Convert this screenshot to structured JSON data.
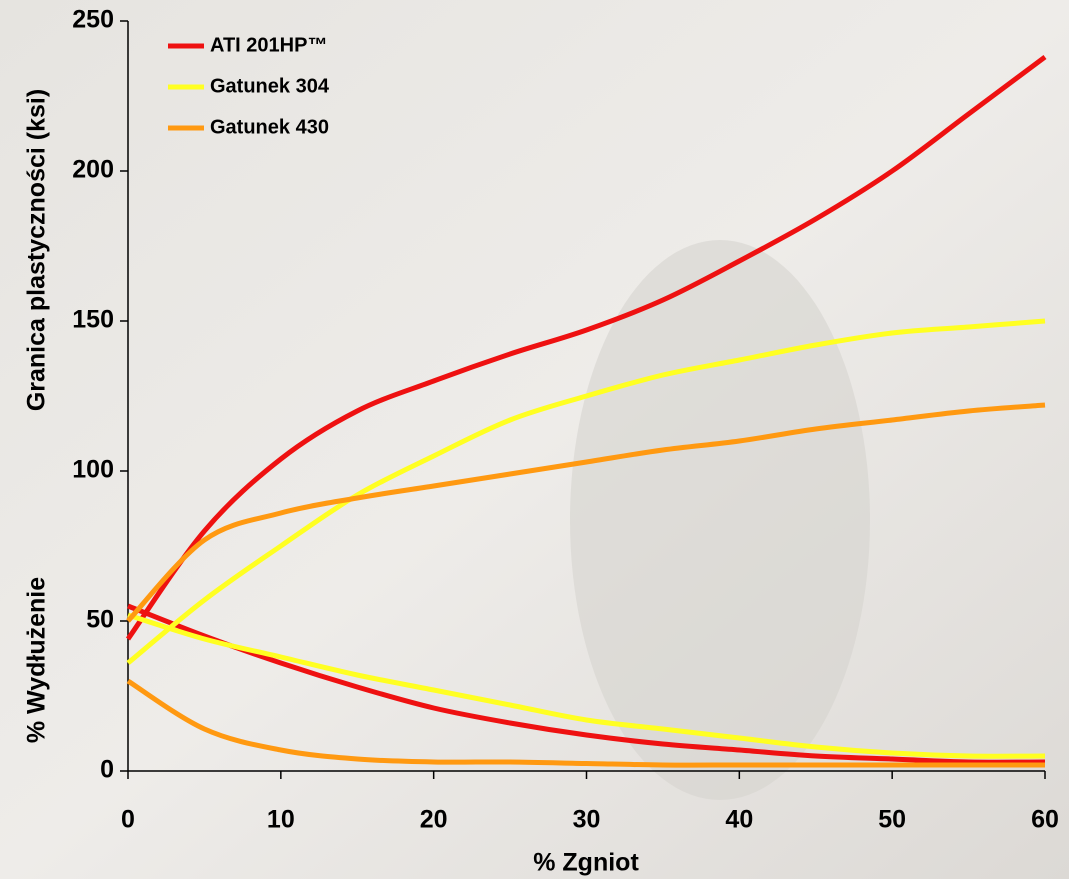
{
  "chart_data": {
    "type": "line",
    "y_labels": [
      "Granica plastyczności (ksi)",
      "% Wydłużenie"
    ],
    "x_label": "% Zgniot",
    "x": [
      0,
      5,
      10,
      15,
      20,
      25,
      30,
      35,
      40,
      45,
      50,
      55,
      60
    ],
    "xlim": [
      0,
      60
    ],
    "xticks": [
      0,
      10,
      20,
      30,
      40,
      50,
      60
    ],
    "ylim": [
      0,
      250
    ],
    "yticks": [
      0,
      50,
      100,
      150,
      200,
      250
    ],
    "legend": "upper left",
    "series": [
      {
        "name": "ATI 201HP™",
        "color": "#ee1111",
        "values": [
          44,
          80,
          104,
          120,
          130,
          139,
          147,
          157,
          170,
          184,
          200,
          219,
          238
        ],
        "elongation": [
          55,
          45,
          36,
          28,
          21,
          16,
          12,
          9,
          7,
          5,
          4,
          3,
          3
        ]
      },
      {
        "name": "Gatunek 304",
        "color": "#ffff22",
        "values": [
          36,
          57,
          75,
          92,
          105,
          117,
          125,
          132,
          137,
          142,
          146,
          148,
          150
        ],
        "elongation": [
          52,
          44,
          38,
          32,
          27,
          22,
          17,
          14,
          11,
          8,
          6,
          5,
          5
        ]
      },
      {
        "name": "Gatunek 430",
        "color": "#ff9911",
        "values": [
          50,
          77,
          86,
          91,
          95,
          99,
          103,
          107,
          110,
          114,
          117,
          120,
          122
        ],
        "elongation": [
          30,
          14,
          7,
          4,
          3,
          3,
          2.5,
          2,
          2,
          2,
          2,
          2,
          2
        ]
      }
    ]
  }
}
